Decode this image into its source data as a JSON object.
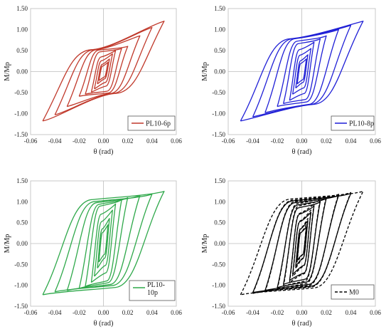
{
  "chart_data": [
    {
      "type": "line",
      "xlabel": "θ (rad)",
      "ylabel": "M/Mp",
      "xlim": [
        -0.06,
        0.06
      ],
      "ylim": [
        -1.5,
        1.5
      ],
      "x_ticks": [
        "-0.06",
        "-0.04",
        "-0.02",
        "0.00",
        "0.02",
        "0.04",
        "0.06"
      ],
      "y_ticks": [
        "1.50",
        "1.00",
        "0.50",
        "0.00",
        "-0.50",
        "-1.00",
        "-1.50"
      ],
      "grid": "axes-through-origin",
      "legend": "bottom-right",
      "series": [
        {
          "name": "PL10-6p",
          "color": "#c0392b",
          "dash": "solid",
          "amplitudes": [
            0.00375,
            0.005,
            0.0075,
            0.01,
            0.015,
            0.02,
            0.03,
            0.04,
            0.05
          ],
          "peak_moments": [
            0.22,
            0.3,
            0.42,
            0.5,
            0.55,
            0.6,
            0.85,
            1.05,
            1.2
          ],
          "plateau": 0.52
        }
      ]
    },
    {
      "type": "line",
      "xlabel": "θ (rad)",
      "ylabel": "M/Mp",
      "xlim": [
        -0.06,
        0.06
      ],
      "ylim": [
        -1.5,
        1.5
      ],
      "x_ticks": [
        "-0.06",
        "-0.04",
        "-0.02",
        "0.00",
        "0.02",
        "0.04",
        "0.06"
      ],
      "y_ticks": [
        "1.50",
        "1.00",
        "0.50",
        "0.00",
        "-0.50",
        "-1.00",
        "-1.50"
      ],
      "grid": "axes-through-origin",
      "legend": "bottom-right",
      "series": [
        {
          "name": "PL10-8p",
          "color": "#1f1fd6",
          "dash": "solid",
          "amplitudes": [
            0.00375,
            0.005,
            0.0075,
            0.01,
            0.015,
            0.02,
            0.03,
            0.04,
            0.05
          ],
          "peak_moments": [
            0.3,
            0.4,
            0.55,
            0.7,
            0.78,
            0.85,
            1.0,
            1.1,
            1.2
          ],
          "plateau": 0.78
        }
      ]
    },
    {
      "type": "line",
      "xlabel": "θ (rad)",
      "ylabel": "M/Mp",
      "xlim": [
        -0.06,
        0.06
      ],
      "ylim": [
        -1.5,
        1.5
      ],
      "x_ticks": [
        "-0.06",
        "-0.04",
        "-0.02",
        "0.00",
        "0.02",
        "0.04",
        "0.06"
      ],
      "y_ticks": [
        "1.50",
        "1.00",
        "0.50",
        "0.00",
        "-0.50",
        "-1.00",
        "-1.50"
      ],
      "grid": "axes-through-origin",
      "legend": "bottom-right",
      "series": [
        {
          "name": "PL10-\n10p",
          "color": "#2ea84a",
          "dash": "solid",
          "amplitudes": [
            0.00375,
            0.005,
            0.0075,
            0.01,
            0.015,
            0.02,
            0.03,
            0.04,
            0.05
          ],
          "peak_moments": [
            0.45,
            0.6,
            0.8,
            0.95,
            1.05,
            1.1,
            1.15,
            1.18,
            1.25
          ],
          "plateau": 1.05
        }
      ]
    },
    {
      "type": "line",
      "xlabel": "θ (rad)",
      "ylabel": "M/Mp",
      "xlim": [
        -0.06,
        0.06
      ],
      "ylim": [
        -1.5,
        1.5
      ],
      "x_ticks": [
        "-0.06",
        "-0.04",
        "-0.02",
        "0.00",
        "0.02",
        "0.04",
        "0.06"
      ],
      "y_ticks": [
        "1.50",
        "1.00",
        "0.50",
        "0.00",
        "-0.50",
        "-1.00",
        "-1.50"
      ],
      "grid": "axes-through-origin",
      "legend": "bottom-right",
      "series": [
        {
          "name": "",
          "color": "#000000",
          "dash": "solid",
          "amplitudes": [
            0.00375,
            0.005,
            0.0075,
            0.01,
            0.015,
            0.02,
            0.03,
            0.04
          ],
          "peak_moments": [
            0.4,
            0.55,
            0.75,
            0.9,
            1.0,
            1.08,
            1.15,
            1.2
          ],
          "plateau": 1.05
        },
        {
          "name": "M0",
          "color": "#000000",
          "dash": "dashed",
          "amplitudes": [
            0.00375,
            0.005,
            0.0075,
            0.01,
            0.015,
            0.02,
            0.03,
            0.04,
            0.05
          ],
          "peak_moments": [
            0.45,
            0.6,
            0.8,
            0.95,
            1.05,
            1.12,
            1.18,
            1.22,
            1.25
          ],
          "plateau": 1.08
        }
      ]
    }
  ]
}
